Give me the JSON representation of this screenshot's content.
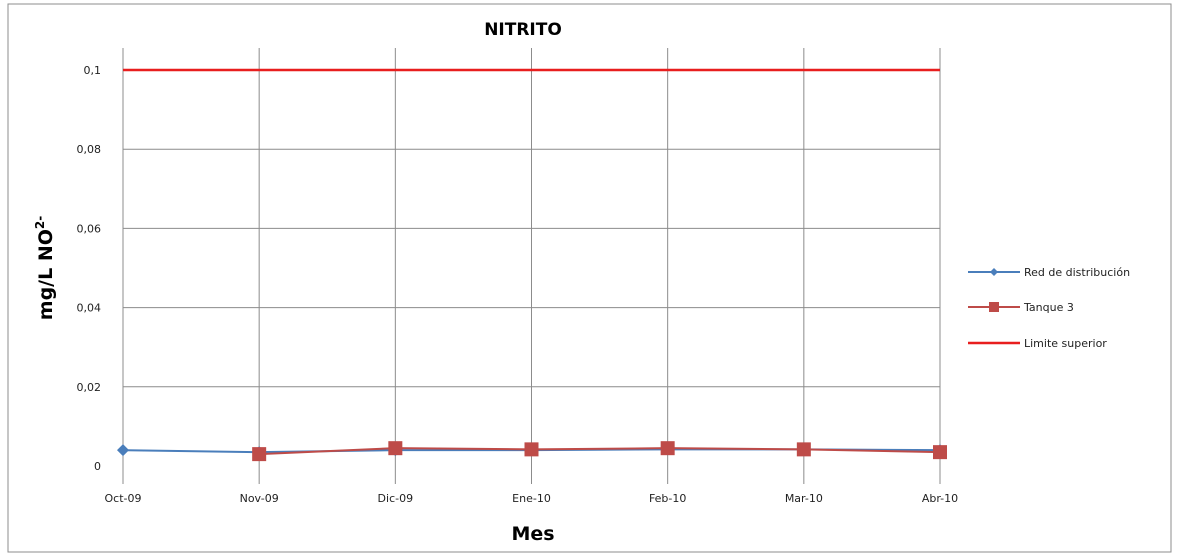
{
  "chart_data": {
    "type": "line",
    "title": "NITRITO",
    "xlabel": "Mes",
    "ylabel": "mg/L NO",
    "ylabel_superscript": "2-",
    "categories": [
      "Oct-09",
      "Nov-09",
      "Dic-09",
      "Ene-10",
      "Feb-10",
      "Mar-10",
      "Abr-10"
    ],
    "ylim": [
      0,
      0.1
    ],
    "yticks": [
      0,
      0.02,
      0.04,
      0.06,
      0.08,
      0.1
    ],
    "ytick_labels": [
      "0",
      "0,02",
      "0,04",
      "0,06",
      "0,08",
      "0,1"
    ],
    "grid": true,
    "legend_position": "right",
    "series": [
      {
        "name": "Red de distribución",
        "values": [
          0.004,
          0.0035,
          0.004,
          0.004,
          0.0042,
          0.0042,
          0.004
        ],
        "color": "#4A7EBB",
        "marker": "diamond"
      },
      {
        "name": "Tanque 3",
        "values": [
          null,
          0.003,
          0.0045,
          0.0042,
          0.0045,
          0.0042,
          0.0035
        ],
        "color": "#BE4B48",
        "marker": "square"
      },
      {
        "name": "Limite superior",
        "values": [
          0.1,
          0.1,
          0.1,
          0.1,
          0.1,
          0.1,
          0.1
        ],
        "color": "#E81E1E",
        "marker": "none"
      }
    ]
  }
}
